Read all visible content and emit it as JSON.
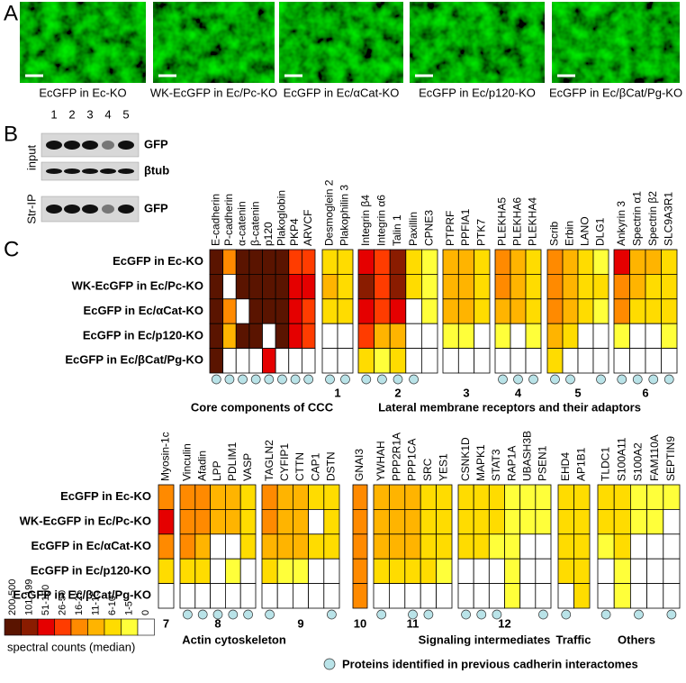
{
  "panel_labels": [
    "A",
    "B",
    "C"
  ],
  "panel_a": {
    "captions": [
      "EcGFP in Ec-KO",
      "WK-EcGFP in Ec/Pc-KO",
      "EcGFP in Ec/αCat-KO",
      "EcGFP in Ec/p120-KO",
      "EcGFP in Ec/βCat/Pg-KO"
    ]
  },
  "panel_b": {
    "lanes": [
      1,
      2,
      3,
      4,
      5
    ],
    "side_labels": [
      "input",
      "Str-IP"
    ],
    "band_labels": [
      "GFP",
      "βtub",
      "GFP"
    ]
  },
  "panel_c": {
    "top": {
      "rows": [
        "EcGFP in Ec-KO",
        "WK-EcGFP in Ec/Pc-KO",
        "EcGFP in Ec/αCat-KO",
        "EcGFP in Ec/p120-KO",
        "EcGFP in Ec/βCat/Pg-KO"
      ],
      "groups": [
        {
          "proteins": [
            "E-cadherin",
            "P-cadherin",
            "α-catenin",
            "β-catenin",
            "p120",
            "Plakoglobin",
            "PKP4",
            "ARVCF"
          ],
          "levels": [
            [
              0,
              0,
              0,
              0,
              0
            ],
            [
              4,
              8,
              4,
              5,
              8
            ],
            [
              0,
              0,
              8,
              0,
              8
            ],
            [
              0,
              0,
              0,
              0,
              8
            ],
            [
              0,
              0,
              0,
              8,
              2
            ],
            [
              0,
              0,
              0,
              0,
              8
            ],
            [
              3,
              2,
              2,
              2,
              8
            ],
            [
              3,
              2,
              3,
              3,
              8
            ]
          ],
          "previous": [
            1,
            1,
            1,
            1,
            1,
            1,
            1,
            1
          ]
        },
        {
          "number": 1,
          "proteins": [
            "Desmoglein 2",
            "Plakophilin 3"
          ],
          "levels": [
            [
              6,
              5,
              6,
              8,
              8
            ],
            [
              6,
              6,
              6,
              8,
              8
            ]
          ],
          "previous": [
            1,
            1
          ]
        },
        {
          "number": 2,
          "proteins": [
            "Integrin β4",
            "Integrin α6",
            "Talin 1",
            "Paxillin",
            "CPNE3"
          ],
          "levels": [
            [
              2,
              1,
              2,
              3,
              6
            ],
            [
              3,
              3,
              3,
              5,
              7
            ],
            [
              1,
              1,
              2,
              5,
              6
            ],
            [
              6,
              6,
              8,
              8,
              8
            ],
            [
              7,
              7,
              7,
              8,
              8
            ]
          ],
          "previous": [
            1,
            1,
            1,
            1,
            0
          ]
        },
        {
          "number": 3,
          "proteins": [
            "PTPRF",
            "PPFIA1",
            "PTK7"
          ],
          "levels": [
            [
              5,
              5,
              5,
              7,
              8
            ],
            [
              5,
              5,
              5,
              7,
              8
            ],
            [
              6,
              6,
              6,
              8,
              8
            ]
          ],
          "previous": [
            0,
            0,
            0
          ]
        },
        {
          "number": 4,
          "proteins": [
            "PLEKHA5",
            "PLEKHA6",
            "PLEKHA4"
          ],
          "levels": [
            [
              4,
              4,
              5,
              7,
              8
            ],
            [
              5,
              5,
              5,
              8,
              8
            ],
            [
              6,
              6,
              6,
              7,
              8
            ]
          ],
          "previous": [
            1,
            1,
            1
          ]
        },
        {
          "number": 5,
          "proteins": [
            "Scrib",
            "Erbin",
            "LANO",
            "DLG1"
          ],
          "levels": [
            [
              4,
              4,
              4,
              5,
              6
            ],
            [
              5,
              5,
              5,
              6,
              8
            ],
            [
              6,
              6,
              6,
              8,
              8
            ],
            [
              7,
              6,
              7,
              8,
              8
            ]
          ],
          "previous": [
            1,
            1,
            0,
            1
          ]
        },
        {
          "number": 6,
          "proteins": [
            "Ankyrin 3",
            "Spectrin α1",
            "Spectrin β2",
            "SLC9A3R1"
          ],
          "levels": [
            [
              2,
              4,
              4,
              7,
              8
            ],
            [
              5,
              5,
              6,
              8,
              8
            ],
            [
              5,
              6,
              6,
              8,
              8
            ],
            [
              6,
              6,
              6,
              7,
              8
            ]
          ],
          "previous": [
            1,
            1,
            1,
            1
          ]
        }
      ],
      "captions": [
        "Core components of CCC",
        "Lateral membrane receptors and their adaptors"
      ]
    },
    "bottom": {
      "rows": [
        "EcGFP in Ec-KO",
        "WK-EcGFP in Ec/Pc-KO",
        "EcGFP in Ec/αCat-KO",
        "EcGFP in Ec/p120-KO",
        "EcGFP in Ec/βCat/Pg-KO"
      ],
      "groups": [
        {
          "number": 7,
          "proteins": [
            "Myosin-1c"
          ],
          "levels": [
            [
              4,
              2,
              4,
              6,
              8
            ]
          ],
          "previous": [
            0
          ]
        },
        {
          "number": 8,
          "proteins": [
            "Vinculin",
            "Afadin",
            "LPP",
            "PDLIM1",
            "VASP"
          ],
          "levels": [
            [
              4,
              4,
              4,
              6,
              8
            ],
            [
              4,
              4,
              5,
              6,
              8
            ],
            [
              5,
              5,
              8,
              8,
              8
            ],
            [
              5,
              5,
              8,
              7,
              8
            ],
            [
              6,
              6,
              6,
              8,
              8
            ]
          ],
          "previous": [
            1,
            1,
            1,
            1,
            1
          ]
        },
        {
          "number": 9,
          "proteins": [
            "TAGLN2",
            "CYFIP1",
            "CTTN",
            "CAP1",
            "DSTN"
          ],
          "levels": [
            [
              4,
              4,
              5,
              6,
              8
            ],
            [
              5,
              5,
              5,
              7,
              8
            ],
            [
              5,
              5,
              5,
              7,
              8
            ],
            [
              6,
              8,
              6,
              8,
              8
            ],
            [
              6,
              6,
              6,
              8,
              8
            ]
          ],
          "previous": [
            1,
            0,
            0,
            0,
            1
          ]
        },
        {
          "number": 10,
          "proteins": [
            "GNAI3"
          ],
          "levels": [
            [
              4,
              4,
              4,
              4,
              4
            ]
          ],
          "previous": [
            0
          ]
        },
        {
          "number": 11,
          "proteins": [
            "YWHAH",
            "PPP2R1A",
            "PPP1CA",
            "SRC",
            "YES1"
          ],
          "levels": [
            [
              5,
              5,
              5,
              6,
              8
            ],
            [
              5,
              5,
              5,
              6,
              8
            ],
            [
              5,
              5,
              5,
              6,
              8
            ],
            [
              6,
              6,
              6,
              6,
              8
            ],
            [
              6,
              6,
              6,
              7,
              8
            ]
          ],
          "previous": [
            1,
            0,
            1,
            1,
            0
          ]
        },
        {
          "number": 12,
          "proteins": [
            "CSNK1D",
            "MAPK1",
            "STAT3",
            "RAP1A",
            "UBASH3B",
            "PSEN1"
          ],
          "levels": [
            [
              6,
              6,
              6,
              8,
              8
            ],
            [
              6,
              6,
              6,
              8,
              8
            ],
            [
              6,
              6,
              7,
              8,
              8
            ],
            [
              7,
              7,
              7,
              7,
              7
            ],
            [
              7,
              7,
              8,
              8,
              8
            ],
            [
              7,
              7,
              8,
              8,
              8
            ]
          ],
          "previous": [
            1,
            1,
            1,
            0,
            0,
            1
          ]
        },
        {
          "proteins": [
            "EHD4",
            "AP1B1"
          ],
          "levels": [
            [
              6,
              6,
              6,
              6,
              8
            ],
            [
              6,
              6,
              6,
              6,
              6
            ]
          ],
          "previous": [
            1,
            0
          ]
        },
        {
          "proteins": [
            "TLDC1",
            "S100A11",
            "S100A2",
            "FAM110A",
            "SEPTIN9"
          ],
          "levels": [
            [
              6,
              6,
              7,
              8,
              8
            ],
            [
              6,
              6,
              6,
              7,
              7
            ],
            [
              7,
              7,
              8,
              8,
              8
            ],
            [
              7,
              7,
              8,
              8,
              8
            ],
            [
              7,
              8,
              8,
              8,
              8
            ]
          ],
          "previous": [
            1,
            0,
            1,
            0,
            1
          ]
        }
      ],
      "captions": [
        "Actin cytoskeleton",
        "Signaling intermediates",
        "Traffic",
        "Others"
      ]
    },
    "legend": {
      "levels": [
        "200-500",
        "101-199",
        "51-100",
        "26-50",
        "16-25",
        "11-15",
        "6-10",
        "1-5",
        "0"
      ],
      "colors": [
        "#5a1400",
        "#8a1c00",
        "#e50000",
        "#ff3c00",
        "#ff8a00",
        "#ffb400",
        "#ffdc00",
        "#ffff3a",
        "#ffffff"
      ],
      "title": "spectral counts (median)",
      "marker_note": "Proteins identified in previous cadherin interactomes",
      "marker_color": "#b9e3e8"
    }
  }
}
